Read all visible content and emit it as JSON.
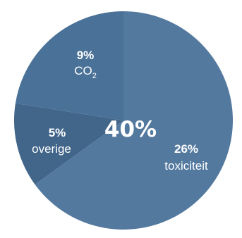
{
  "chart_data": {
    "type": "pie",
    "title": "",
    "center_label": "40%",
    "slices": [
      {
        "label": "toxiciteit",
        "value": 26,
        "value_label": "26%",
        "color": "#54799f"
      },
      {
        "label": "overige",
        "value": 5,
        "value_label": "5%",
        "color": "#42658a"
      },
      {
        "label": "CO2",
        "value": 9,
        "value_label": "9%",
        "color": "#4a7197"
      }
    ]
  },
  "labels": {
    "co2": {
      "value": "9%",
      "base": "CO",
      "sub": "2"
    },
    "overige": {
      "value": "5%",
      "name": "overige"
    },
    "toxiciteit": {
      "value": "26%",
      "name": "toxiciteit"
    },
    "center": "40%"
  }
}
